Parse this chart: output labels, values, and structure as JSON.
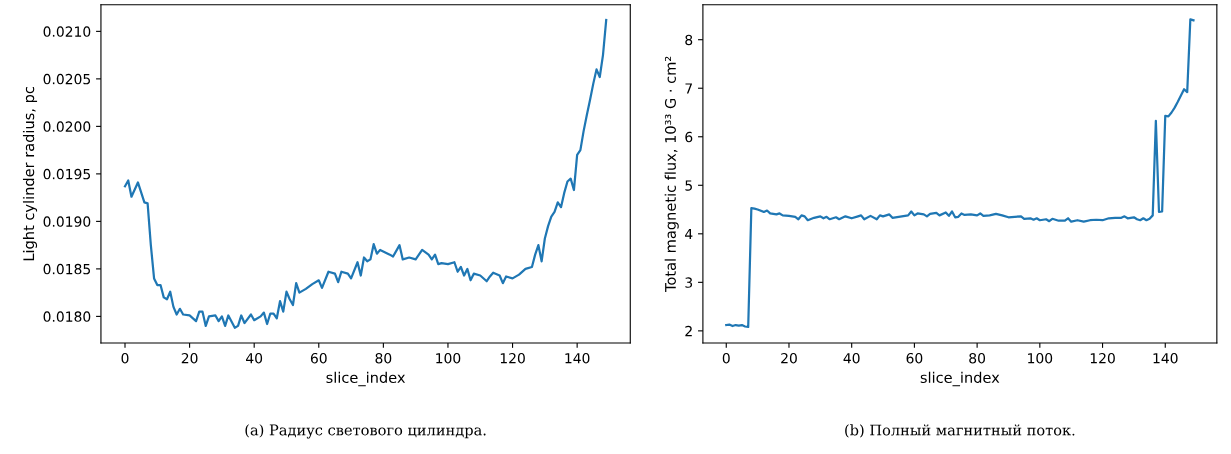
{
  "chart_data": [
    {
      "type": "line",
      "xlabel": "slice_index",
      "ylabel": "Light cylinder radius, pc",
      "annotations": [
        "(a) Радиус светового цилиндра."
      ],
      "grid": false,
      "legend": false,
      "xlim": [
        -7.45,
        156.45
      ],
      "xticks": [
        0,
        20,
        40,
        60,
        80,
        100,
        120,
        140
      ],
      "ylim": [
        0.01772,
        0.02128
      ],
      "yticks": [
        {
          "value": 0.018,
          "label": "0.0180"
        },
        {
          "value": 0.0185,
          "label": "0.0185"
        },
        {
          "value": 0.019,
          "label": "0.0190"
        },
        {
          "value": 0.0195,
          "label": "0.0195"
        },
        {
          "value": 0.02,
          "label": "0.0200"
        },
        {
          "value": 0.0205,
          "label": "0.0205"
        },
        {
          "value": 0.021,
          "label": "0.0210"
        }
      ],
      "series": [
        {
          "color": "#1f77b4",
          "x": [
            0,
            1,
            2,
            4,
            6,
            7,
            8,
            9,
            10,
            11,
            12,
            13,
            14,
            15,
            16,
            17,
            18,
            20,
            22,
            23,
            24,
            25,
            26,
            28,
            29,
            30,
            31,
            32,
            34,
            35,
            36,
            37,
            39,
            40,
            42,
            43,
            44,
            45,
            46,
            47,
            48,
            49,
            50,
            51,
            52,
            53,
            54,
            56,
            58,
            60,
            61,
            63,
            65,
            66,
            67,
            69,
            70,
            72,
            73,
            74,
            75,
            76,
            77,
            78,
            79,
            82,
            83,
            85,
            86,
            88,
            90,
            92,
            94,
            95,
            96,
            97,
            98,
            100,
            102,
            103,
            104,
            105,
            106,
            107,
            108,
            110,
            112,
            113,
            114,
            116,
            117,
            118,
            120,
            122,
            124,
            126,
            127,
            128,
            129,
            130,
            131,
            132,
            133,
            134,
            135,
            136,
            137,
            138,
            139,
            140,
            141,
            142,
            143,
            144,
            145,
            146,
            147,
            148,
            149
          ],
          "values": [
            0.01937,
            0.01943,
            0.01926,
            0.01941,
            0.0192,
            0.01919,
            0.01875,
            0.0184,
            0.01833,
            0.01833,
            0.0182,
            0.01818,
            0.01826,
            0.0181,
            0.01802,
            0.01808,
            0.01802,
            0.01801,
            0.01795,
            0.01805,
            0.01805,
            0.0179,
            0.018,
            0.01801,
            0.01795,
            0.018,
            0.0179,
            0.01801,
            0.01788,
            0.0179,
            0.01801,
            0.01793,
            0.01802,
            0.01796,
            0.018,
            0.01804,
            0.01792,
            0.01803,
            0.01803,
            0.01798,
            0.01816,
            0.01805,
            0.01826,
            0.01818,
            0.01812,
            0.01835,
            0.01825,
            0.01829,
            0.01834,
            0.01838,
            0.0183,
            0.01847,
            0.01845,
            0.01836,
            0.01847,
            0.01845,
            0.0184,
            0.01857,
            0.01843,
            0.01862,
            0.01858,
            0.0186,
            0.01876,
            0.01866,
            0.0187,
            0.01865,
            0.01863,
            0.01875,
            0.0186,
            0.01862,
            0.0186,
            0.0187,
            0.01865,
            0.0186,
            0.01865,
            0.01855,
            0.01856,
            0.01855,
            0.01857,
            0.01847,
            0.01852,
            0.01843,
            0.0185,
            0.01838,
            0.01845,
            0.01843,
            0.01837,
            0.01842,
            0.01846,
            0.01843,
            0.01835,
            0.01842,
            0.0184,
            0.01844,
            0.0185,
            0.01852,
            0.01865,
            0.01875,
            0.01858,
            0.01882,
            0.01895,
            0.01905,
            0.0191,
            0.0192,
            0.01915,
            0.0193,
            0.01942,
            0.01945,
            0.01933,
            0.0197,
            0.01975,
            0.01995,
            0.02012,
            0.02028,
            0.02045,
            0.0206,
            0.02052,
            0.02075,
            0.02112
          ]
        }
      ]
    },
    {
      "type": "line",
      "xlabel": "slice_index",
      "ylabel": "Total magnetic flux, 10³³ G · cm²",
      "annotations": [
        "(b) Полный магнитный поток."
      ],
      "grid": false,
      "legend": false,
      "xlim": [
        -7.45,
        156.45
      ],
      "xticks": [
        0,
        20,
        40,
        60,
        80,
        100,
        120,
        140
      ],
      "ylim": [
        1.75,
        8.72
      ],
      "yticks": [
        2,
        3,
        4,
        5,
        6,
        7,
        8
      ],
      "series": [
        {
          "color": "#1f77b4",
          "x": [
            0,
            1,
            2,
            3,
            4,
            5,
            6,
            7,
            8,
            9,
            10,
            12,
            13,
            14,
            16,
            17,
            18,
            20,
            22,
            23,
            24,
            25,
            26,
            28,
            30,
            31,
            32,
            33,
            35,
            36,
            38,
            40,
            42,
            43,
            44,
            46,
            48,
            49,
            50,
            52,
            53,
            55,
            58,
            59,
            60,
            61,
            63,
            64,
            65,
            67,
            68,
            70,
            71,
            72,
            73,
            74,
            75,
            76,
            78,
            80,
            81,
            82,
            84,
            86,
            88,
            90,
            92,
            94,
            95,
            97,
            98,
            99,
            100,
            102,
            103,
            104,
            106,
            108,
            109,
            110,
            112,
            114,
            116,
            118,
            120,
            122,
            124,
            126,
            127,
            128,
            130,
            131,
            132,
            133,
            134,
            135,
            136,
            137,
            138,
            139,
            140,
            141,
            142,
            143,
            144,
            145,
            146,
            147,
            148,
            149
          ],
          "values": [
            2.12,
            2.13,
            2.1,
            2.12,
            2.11,
            2.12,
            2.09,
            2.08,
            4.53,
            4.52,
            4.5,
            4.45,
            4.48,
            4.42,
            4.4,
            4.42,
            4.38,
            4.37,
            4.35,
            4.3,
            4.38,
            4.36,
            4.28,
            4.33,
            4.36,
            4.32,
            4.35,
            4.3,
            4.34,
            4.3,
            4.36,
            4.32,
            4.36,
            4.38,
            4.3,
            4.37,
            4.3,
            4.38,
            4.36,
            4.4,
            4.33,
            4.35,
            4.38,
            4.46,
            4.38,
            4.42,
            4.4,
            4.36,
            4.41,
            4.43,
            4.38,
            4.44,
            4.37,
            4.46,
            4.34,
            4.35,
            4.42,
            4.39,
            4.4,
            4.38,
            4.42,
            4.37,
            4.38,
            4.41,
            4.38,
            4.34,
            4.35,
            4.36,
            4.31,
            4.32,
            4.29,
            4.32,
            4.28,
            4.3,
            4.26,
            4.31,
            4.27,
            4.27,
            4.32,
            4.25,
            4.28,
            4.25,
            4.28,
            4.29,
            4.28,
            4.32,
            4.33,
            4.33,
            4.36,
            4.32,
            4.34,
            4.3,
            4.28,
            4.32,
            4.28,
            4.31,
            4.38,
            6.33,
            4.45,
            4.46,
            6.43,
            6.42,
            6.5,
            6.6,
            6.72,
            6.85,
            6.98,
            6.92,
            8.42,
            8.4
          ]
        }
      ]
    }
  ]
}
